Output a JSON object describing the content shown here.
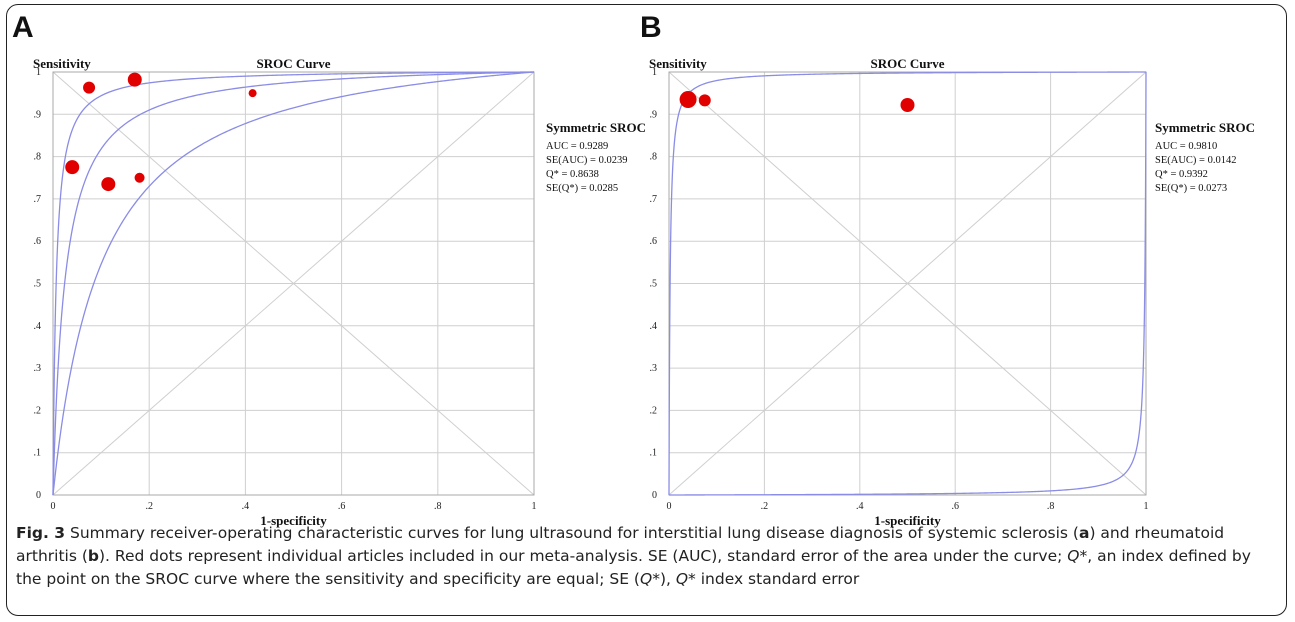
{
  "caption": {
    "label": "Fig. 3",
    "parts": [
      {
        "t": " Summary receiver-operating characteristic curves for lung ultrasound for interstitial lung disease diagnosis of systemic sclerosis ("
      },
      {
        "t": "a",
        "b": true
      },
      {
        "t": ") and rheumatoid arthritis ("
      },
      {
        "t": "b",
        "b": true
      },
      {
        "t": "). Red dots represent individual articles included in our meta-analysis. SE (AUC), standard error of the area under the curve; "
      },
      {
        "t": "Q",
        "i": true
      },
      {
        "t": "*, an index defined by the point on the SROC curve where the sensitivity and specificity are equal; SE ("
      },
      {
        "t": "Q",
        "i": true
      },
      {
        "t": "*), "
      },
      {
        "t": "Q",
        "i": true
      },
      {
        "t": "* index standard error"
      }
    ]
  },
  "chart_data": [
    {
      "panel": "A",
      "type": "line",
      "title": "SROC Curve",
      "xlabel": "1-specificity",
      "ylabel": "Sensitivity",
      "xlim": [
        0,
        1
      ],
      "ylim": [
        0,
        1
      ],
      "xticks": [
        "0",
        ".2",
        ".4",
        ".6",
        ".8",
        "1"
      ],
      "yticks": [
        "0",
        ".1",
        ".2",
        ".3",
        ".4",
        ".5",
        ".6",
        ".7",
        ".8",
        ".9",
        "1"
      ],
      "curve_color": "#8a8ce6",
      "point_color": "#e00000",
      "curves": [
        {
          "D": 5.02
        },
        {
          "D": 3.7
        },
        {
          "D": 2.38
        }
      ],
      "points": [
        {
          "x": 0.04,
          "y": 0.775,
          "weight": "large"
        },
        {
          "x": 0.075,
          "y": 0.963,
          "weight": "medium"
        },
        {
          "x": 0.115,
          "y": 0.735,
          "weight": "large"
        },
        {
          "x": 0.17,
          "y": 0.982,
          "weight": "large"
        },
        {
          "x": 0.18,
          "y": 0.75,
          "weight": "small"
        },
        {
          "x": 0.415,
          "y": 0.95,
          "weight": "xsmall"
        }
      ],
      "legend": {
        "title": "Symmetric SROC",
        "lines": [
          "AUC = 0.9289",
          "SE(AUC) = 0.0239",
          "Q* = 0.8638",
          "SE(Q*) = 0.0285"
        ]
      }
    },
    {
      "panel": "B",
      "type": "line",
      "title": "SROC Curve",
      "xlabel": "1-specificity",
      "ylabel": "Sensitivity",
      "xlim": [
        0,
        1
      ],
      "ylim": [
        0,
        1
      ],
      "xticks": [
        "0",
        ".2",
        ".4",
        ".6",
        ".8",
        "1"
      ],
      "yticks": [
        "0",
        ".1",
        ".2",
        ".3",
        ".4",
        ".5",
        ".6",
        ".7",
        ".8",
        ".9",
        "1"
      ],
      "curve_color": "#8a8ce6",
      "point_color": "#e00000",
      "curves": [
        {
          "D": 6.08
        },
        {
          "D": -6.0
        }
      ],
      "points": [
        {
          "x": 0.04,
          "y": 0.935,
          "weight": "xlarge"
        },
        {
          "x": 0.075,
          "y": 0.933,
          "weight": "medium"
        },
        {
          "x": 0.5,
          "y": 0.922,
          "weight": "large"
        }
      ],
      "legend": {
        "title": "Symmetric SROC",
        "lines": [
          "AUC = 0.9810",
          "SE(AUC) = 0.0142",
          "Q* = 0.9392",
          "SE(Q*) = 0.0273"
        ]
      }
    }
  ]
}
